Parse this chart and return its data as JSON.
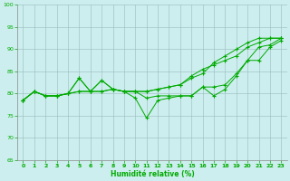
{
  "xlabel": "Humidité relative (%)",
  "bg_color": "#cceeee",
  "grid_color": "#99bbbb",
  "line_color": "#00aa00",
  "xlim": [
    -0.5,
    23.5
  ],
  "ylim": [
    65,
    100
  ],
  "yticks": [
    65,
    70,
    75,
    80,
    85,
    90,
    95,
    100
  ],
  "xticks": [
    0,
    1,
    2,
    3,
    4,
    5,
    6,
    7,
    8,
    9,
    10,
    11,
    12,
    13,
    14,
    15,
    16,
    17,
    18,
    19,
    20,
    21,
    22,
    23
  ],
  "series": [
    [
      78.5,
      80.5,
      79.5,
      79.5,
      80.0,
      83.5,
      80.5,
      83.0,
      81.0,
      80.5,
      80.5,
      79.0,
      79.5,
      79.5,
      79.5,
      79.5,
      81.5,
      81.5,
      82.0,
      84.5,
      87.5,
      87.5,
      90.5,
      92.0
    ],
    [
      78.5,
      80.5,
      79.5,
      79.5,
      80.0,
      83.5,
      80.5,
      83.0,
      81.0,
      80.5,
      79.0,
      74.5,
      78.5,
      79.0,
      79.5,
      79.5,
      81.5,
      79.5,
      81.0,
      84.0,
      87.5,
      90.5,
      91.0,
      92.5
    ],
    [
      78.5,
      80.5,
      79.5,
      79.5,
      80.0,
      80.5,
      80.5,
      80.5,
      81.0,
      80.5,
      80.5,
      80.5,
      81.0,
      81.5,
      82.0,
      83.5,
      84.5,
      87.0,
      88.5,
      90.0,
      91.5,
      92.5,
      92.5,
      92.5
    ],
    [
      78.5,
      80.5,
      79.5,
      79.5,
      80.0,
      80.5,
      80.5,
      80.5,
      81.0,
      80.5,
      80.5,
      80.5,
      81.0,
      81.5,
      82.0,
      84.0,
      85.5,
      86.5,
      87.5,
      88.5,
      90.5,
      91.5,
      92.5,
      92.5
    ]
  ]
}
